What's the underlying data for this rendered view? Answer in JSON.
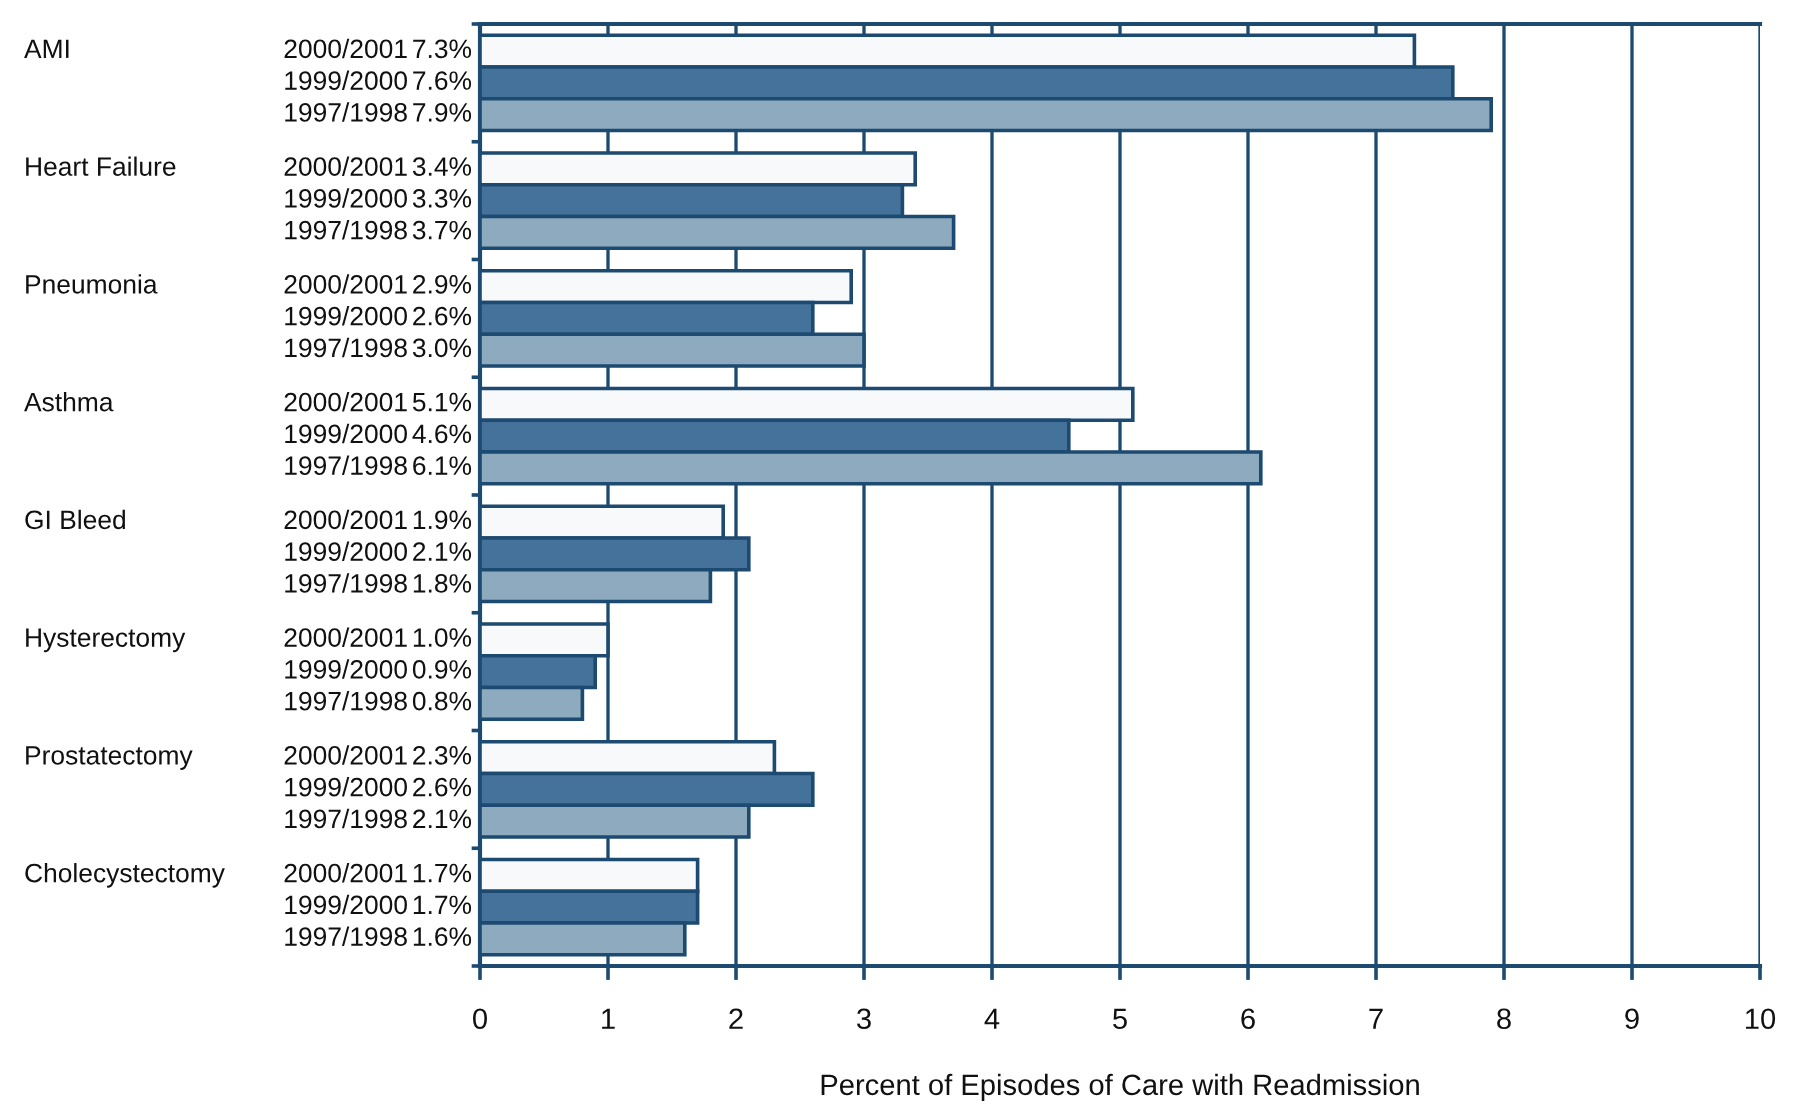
{
  "chart_data": {
    "type": "bar",
    "orientation": "horizontal",
    "xlabel": "Percent of Episodes of Care with Readmission",
    "categories": [
      "AMI",
      "Heart Failure",
      "Pneumonia",
      "Asthma",
      "GI Bleed",
      "Hysterectomy",
      "Prostatectomy",
      "Cholecystectomy"
    ],
    "series": [
      {
        "name": "2000/2001",
        "color": "#f7f9fb",
        "values": [
          7.3,
          3.4,
          2.9,
          5.1,
          1.9,
          1.0,
          2.3,
          1.7
        ],
        "value_labels": [
          "7.3%",
          "3.4%",
          "2.9%",
          "5.1%",
          "1.9%",
          "1.0%",
          "2.3%",
          "1.7%"
        ]
      },
      {
        "name": "1999/2000",
        "color": "#44729a",
        "values": [
          7.6,
          3.3,
          2.6,
          4.6,
          2.1,
          0.9,
          2.6,
          1.7
        ],
        "value_labels": [
          "7.6%",
          "3.3%",
          "2.6%",
          "4.6%",
          "2.1%",
          "0.9%",
          "2.6%",
          "1.7%"
        ]
      },
      {
        "name": "1997/1998",
        "color": "#8eaabe",
        "values": [
          7.9,
          3.7,
          3.0,
          6.1,
          1.8,
          0.8,
          2.1,
          1.6
        ],
        "value_labels": [
          "7.9%",
          "3.7%",
          "3.0%",
          "6.1%",
          "1.8%",
          "0.8%",
          "2.1%",
          "1.6%"
        ]
      }
    ],
    "xlim": [
      0,
      10
    ],
    "xticks": [
      0,
      1,
      2,
      3,
      4,
      5,
      6,
      7,
      8,
      9,
      10
    ],
    "grid": "x",
    "legend": false
  }
}
